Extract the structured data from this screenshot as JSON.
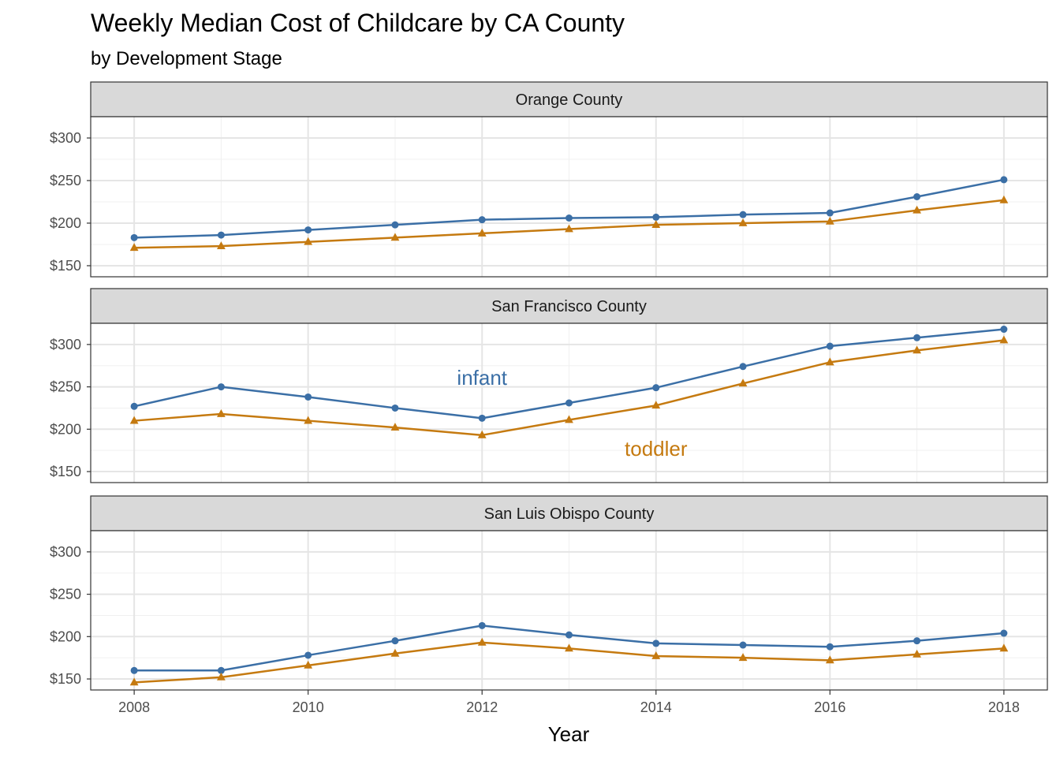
{
  "chart_data": {
    "type": "line",
    "title": "Weekly Median Cost of Childcare by CA County",
    "subtitle": "by Development Stage",
    "xlabel": "Year",
    "ylabel": "",
    "x": [
      2008,
      2009,
      2010,
      2011,
      2012,
      2013,
      2014,
      2015,
      2016,
      2017,
      2018
    ],
    "xticks": [
      2008,
      2010,
      2012,
      2014,
      2016,
      2018
    ],
    "xtick_labels": [
      "2008",
      "2010",
      "2012",
      "2014",
      "2016",
      "2018"
    ],
    "xlim": [
      2007.5,
      2018.5
    ],
    "ylim": [
      137,
      325
    ],
    "yticks": [
      150,
      200,
      250,
      300
    ],
    "ytick_labels": [
      "$150",
      "$200",
      "$250",
      "$300"
    ],
    "grid": true,
    "legend": "none",
    "series_styles": [
      {
        "key": "infant",
        "color": "#3b6fa6",
        "marker": "circle"
      },
      {
        "key": "toddler",
        "color": "#c57a10",
        "marker": "triangle"
      }
    ],
    "panels": [
      {
        "label": "Orange County",
        "series": [
          {
            "key": "infant",
            "values": [
              183,
              186,
              192,
              198,
              204,
              206,
              207,
              210,
              212,
              231,
              251
            ]
          },
          {
            "key": "toddler",
            "values": [
              171,
              173,
              178,
              183,
              188,
              193,
              198,
              200,
              202,
              215,
              227
            ]
          }
        ]
      },
      {
        "label": "San Francisco County",
        "series": [
          {
            "key": "infant",
            "values": [
              227,
              250,
              238,
              225,
              213,
              231,
              249,
              274,
              298,
              308,
              318
            ]
          },
          {
            "key": "toddler",
            "values": [
              210,
              218,
              210,
              202,
              193,
              211,
              228,
              254,
              279,
              293,
              305
            ]
          }
        ],
        "annotations": [
          {
            "text": "infant",
            "x": 2012,
            "y": 261,
            "series": "infant"
          },
          {
            "text": "toddler",
            "x": 2014,
            "y": 177,
            "series": "toddler"
          }
        ]
      },
      {
        "label": "San Luis Obispo County",
        "series": [
          {
            "key": "infant",
            "values": [
              160,
              160,
              178,
              195,
              213,
              202,
              192,
              190,
              188,
              195,
              204
            ]
          },
          {
            "key": "toddler",
            "values": [
              146,
              152,
              166,
              180,
              193,
              186,
              177,
              175,
              172,
              179,
              186
            ]
          }
        ]
      }
    ]
  }
}
